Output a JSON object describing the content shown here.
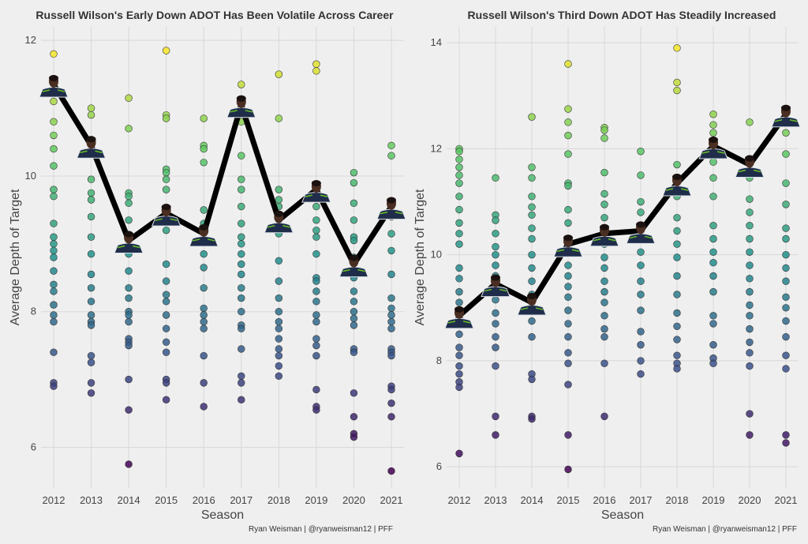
{
  "colors": {
    "background": "#efefef",
    "grid": "#d8d8d8",
    "line": "#000000",
    "viridis_low": "#440154",
    "viridis_mid": "#21908d",
    "viridis_high": "#fde725"
  },
  "chart_data": [
    {
      "type": "scatter",
      "title": "Russell Wilson's Early Down ADOT Has Been Volatile Across Career",
      "xlabel": "Season",
      "ylabel": "Average Depth of Target",
      "caption": "Ryan Weisman | @ryanweisman12 | PFF",
      "categories": [
        "2012",
        "2013",
        "2014",
        "2015",
        "2016",
        "2017",
        "2018",
        "2019",
        "2020",
        "2021"
      ],
      "ylim": [
        5.4,
        12.2
      ],
      "yticks": [
        6,
        8,
        10,
        12
      ],
      "color_scale": "viridis",
      "grid": true,
      "line_series": {
        "name": "Russell Wilson",
        "marker": "player-headshot",
        "values": [
          11.35,
          10.45,
          9.05,
          9.45,
          9.15,
          11.05,
          9.35,
          9.8,
          8.7,
          9.55
        ]
      },
      "points": [
        [
          11.8,
          11.1,
          10.8,
          10.6,
          10.4,
          10.15,
          9.8,
          9.7,
          9.3,
          9.1,
          9.0,
          8.9,
          8.8,
          8.6,
          8.4,
          8.3,
          8.1,
          7.95,
          7.85,
          7.4,
          6.95,
          6.9
        ],
        [
          11.0,
          10.9,
          10.5,
          9.95,
          9.75,
          9.65,
          9.4,
          9.1,
          8.85,
          8.55,
          8.35,
          8.15,
          7.95,
          7.85,
          7.8,
          7.35,
          7.25,
          6.95,
          6.8
        ],
        [
          11.15,
          10.7,
          9.75,
          9.7,
          9.6,
          9.35,
          8.85,
          8.6,
          8.35,
          8.2,
          8.0,
          7.95,
          7.85,
          7.6,
          7.55,
          7.5,
          7.0,
          6.55,
          5.75
        ],
        [
          11.85,
          10.9,
          10.85,
          10.1,
          10.05,
          9.95,
          9.8,
          9.2,
          8.7,
          8.45,
          8.25,
          8.15,
          7.95,
          7.75,
          7.55,
          7.4,
          7.0,
          6.95,
          6.7
        ],
        [
          10.85,
          10.45,
          10.4,
          10.2,
          9.5,
          9.3,
          8.85,
          8.65,
          8.35,
          8.05,
          7.95,
          7.85,
          7.75,
          7.35,
          6.95,
          6.6
        ],
        [
          11.35,
          10.95,
          10.8,
          10.3,
          9.95,
          9.8,
          9.55,
          9.3,
          9.1,
          9.0,
          8.85,
          8.7,
          8.55,
          8.35,
          8.2,
          8.0,
          7.8,
          7.75,
          7.45,
          7.05,
          6.95,
          6.7
        ],
        [
          11.5,
          10.85,
          9.8,
          9.65,
          9.55,
          9.15,
          8.75,
          8.45,
          8.2,
          8.0,
          7.85,
          7.75,
          7.6,
          7.45,
          7.35,
          7.2,
          7.05
        ],
        [
          11.65,
          11.55,
          9.55,
          9.35,
          9.2,
          9.1,
          8.85,
          8.5,
          8.45,
          8.3,
          8.15,
          7.95,
          7.85,
          7.6,
          7.5,
          7.35,
          6.85,
          6.6,
          6.55
        ],
        [
          10.05,
          9.9,
          9.6,
          9.35,
          9.1,
          9.05,
          8.8,
          8.5,
          8.3,
          8.15,
          8.0,
          7.9,
          7.8,
          7.45,
          7.4,
          6.8,
          6.45,
          6.2,
          6.15
        ],
        [
          10.45,
          10.3,
          9.6,
          9.4,
          9.15,
          8.9,
          8.55,
          8.2,
          8.05,
          7.95,
          7.85,
          7.75,
          7.45,
          7.4,
          7.35,
          6.9,
          6.85,
          6.65,
          6.45,
          5.65
        ]
      ]
    },
    {
      "type": "scatter",
      "title": "Russell Wilson's Third Down ADOT Has Steadily Increased",
      "xlabel": "Season",
      "ylabel": "Average Depth of Target",
      "caption": "Ryan Weisman | @ryanweisman12 | PFF",
      "categories": [
        "2012",
        "2013",
        "2014",
        "2015",
        "2016",
        "2017",
        "2018",
        "2019",
        "2020",
        "2021"
      ],
      "ylim": [
        5.6,
        14.3
      ],
      "yticks": [
        6,
        8,
        10,
        12,
        14
      ],
      "color_scale": "viridis",
      "grid": true,
      "line_series": {
        "name": "Russell Wilson",
        "marker": "player-headshot",
        "values": [
          8.85,
          9.45,
          9.1,
          10.2,
          10.4,
          10.45,
          11.35,
          12.05,
          11.7,
          12.65
        ]
      },
      "points": [
        [
          12.0,
          11.95,
          11.8,
          11.65,
          11.5,
          11.35,
          11.1,
          10.85,
          10.6,
          10.4,
          10.2,
          9.75,
          9.55,
          9.3,
          9.1,
          8.8,
          8.5,
          8.25,
          8.1,
          7.9,
          7.75,
          7.6,
          7.5,
          6.25
        ],
        [
          11.45,
          10.75,
          10.65,
          10.4,
          10.15,
          10.0,
          9.8,
          9.6,
          9.35,
          9.15,
          8.9,
          8.7,
          8.45,
          8.25,
          7.9,
          6.95,
          6.6
        ],
        [
          12.6,
          11.65,
          11.45,
          11.1,
          10.9,
          10.75,
          10.5,
          10.3,
          10.0,
          9.75,
          9.5,
          9.25,
          9.1,
          8.95,
          8.75,
          8.45,
          7.75,
          7.65,
          6.95,
          6.9
        ],
        [
          13.6,
          12.75,
          12.5,
          12.25,
          11.9,
          11.35,
          11.3,
          10.85,
          10.6,
          10.3,
          10.05,
          9.8,
          9.6,
          9.4,
          9.2,
          8.95,
          8.7,
          8.45,
          8.15,
          7.95,
          7.55,
          6.6,
          5.95
        ],
        [
          12.4,
          12.35,
          12.2,
          11.55,
          11.15,
          10.95,
          10.7,
          10.45,
          10.2,
          9.95,
          9.75,
          9.5,
          9.3,
          9.1,
          8.85,
          8.6,
          8.45,
          7.95,
          6.95
        ],
        [
          11.95,
          11.5,
          11.0,
          10.8,
          10.5,
          10.3,
          10.05,
          9.8,
          9.5,
          9.25,
          8.95,
          8.55,
          8.3,
          8.0,
          7.75
        ],
        [
          13.9,
          13.25,
          13.1,
          11.7,
          11.1,
          10.7,
          10.45,
          10.2,
          9.95,
          9.6,
          9.25,
          8.9,
          8.65,
          8.4,
          8.1,
          7.95,
          7.85
        ],
        [
          12.65,
          12.45,
          12.3,
          11.75,
          11.45,
          11.1,
          10.55,
          10.3,
          10.05,
          9.85,
          9.6,
          9.3,
          8.85,
          8.7,
          8.3,
          8.05,
          7.95
        ],
        [
          12.5,
          11.45,
          11.05,
          10.8,
          10.55,
          10.3,
          10.05,
          9.8,
          9.55,
          9.3,
          9.05,
          8.85,
          8.6,
          8.35,
          8.15,
          7.9,
          7.0,
          6.6
        ],
        [
          12.5,
          12.3,
          11.9,
          11.35,
          10.95,
          10.5,
          10.3,
          10.0,
          9.75,
          9.5,
          9.2,
          9.0,
          8.75,
          8.45,
          8.1,
          7.85,
          6.6,
          6.45
        ]
      ]
    }
  ]
}
